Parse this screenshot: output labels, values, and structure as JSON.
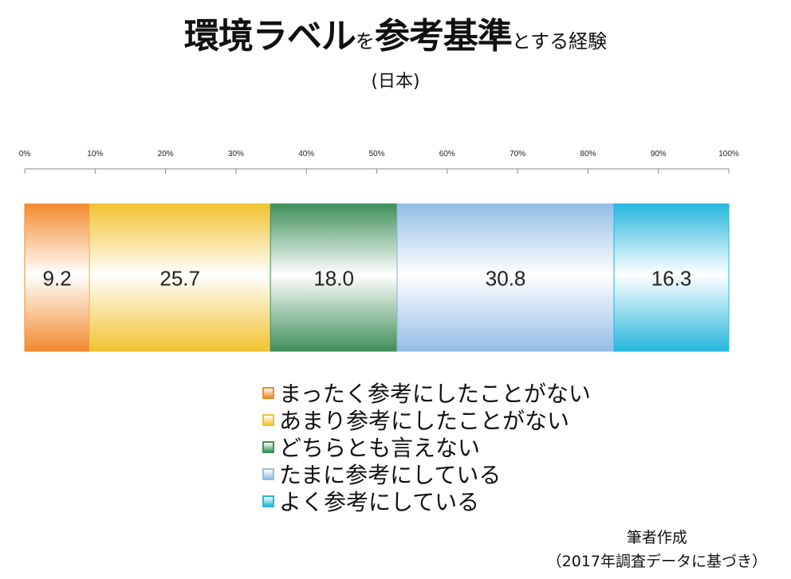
{
  "title": {
    "part1": "環境ラベル",
    "part2": "を",
    "part3": "参考基準",
    "part4": "とする経験"
  },
  "subtitle": "(日本)",
  "chart_data": {
    "type": "bar",
    "orientation": "horizontal-stacked-100",
    "xlim": [
      0,
      100
    ],
    "ticks": [
      "0%",
      "10%",
      "20%",
      "30%",
      "40%",
      "50%",
      "60%",
      "70%",
      "80%",
      "90%",
      "100%"
    ],
    "series": [
      {
        "name": "まったく参考にしたことがない",
        "value": 9.2,
        "label": "9.2",
        "color": "#f28a2e"
      },
      {
        "name": "あまり参考にしたことがない",
        "value": 25.7,
        "label": "25.7",
        "color": "#f2c230"
      },
      {
        "name": "どちらとも言えない",
        "value": 18.0,
        "label": "18.0",
        "color": "#3f8f5b"
      },
      {
        "name": "たまに参考にしている",
        "value": 30.8,
        "label": "30.8",
        "color": "#93bde6"
      },
      {
        "name": "よく参考にしている",
        "value": 16.3,
        "label": "16.3",
        "color": "#27b6dd"
      }
    ],
    "legend_position": "bottom"
  },
  "source": {
    "line1": "筆者作成",
    "line2": "（2017年調査データに基づき）"
  }
}
